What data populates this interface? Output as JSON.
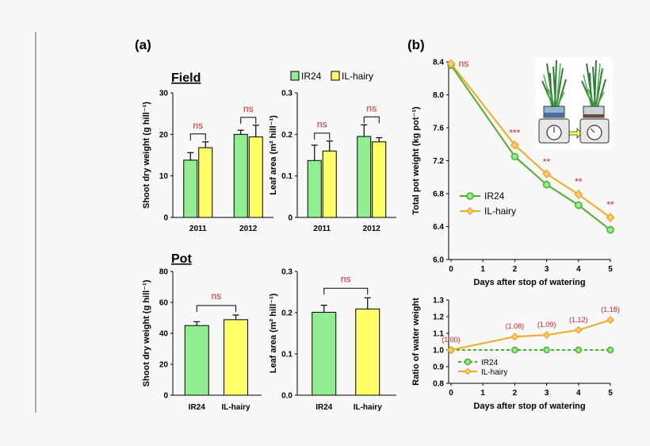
{
  "figure": {
    "panel_a": "(a)",
    "panel_b": "(b)",
    "field_title": "Field",
    "pot_title": "Pot",
    "legend_top": [
      "IR24",
      "IL-hairy"
    ]
  },
  "colors": {
    "ir24": "#90ee90",
    "ilhairy": "#ffff66",
    "ir24_line": "#4caf2a",
    "ilhairy_line": "#f5a623",
    "sig": "#e02020"
  },
  "chart_data": [
    {
      "id": "field_shoot",
      "type": "bar",
      "ylabel": "Shoot dry weight (g hill⁻¹)",
      "ylim": [
        0,
        30
      ],
      "yticks": [
        "0",
        "10",
        "20",
        "30"
      ],
      "groups": [
        "2011",
        "2012"
      ],
      "series": [
        {
          "name": "IR24",
          "values": [
            13.8,
            20.0
          ],
          "errors": [
            1.8,
            1.0
          ]
        },
        {
          "name": "IL-hairy",
          "values": [
            16.8,
            19.4
          ],
          "errors": [
            1.4,
            2.8
          ]
        }
      ],
      "annotations": [
        "ns",
        "ns"
      ]
    },
    {
      "id": "field_leaf",
      "type": "bar",
      "ylabel": "Leaf area (m² hill⁻¹)",
      "ylim": [
        0,
        0.3
      ],
      "yticks": [
        "0",
        "0.1",
        "0.2",
        "0.3"
      ],
      "groups": [
        "2011",
        "2012"
      ],
      "series": [
        {
          "name": "IR24",
          "values": [
            0.137,
            0.195
          ],
          "errors": [
            0.037,
            0.028
          ]
        },
        {
          "name": "IL-hairy",
          "values": [
            0.16,
            0.182
          ],
          "errors": [
            0.024,
            0.01
          ]
        }
      ],
      "annotations": [
        "ns",
        "ns"
      ]
    },
    {
      "id": "pot_shoot",
      "type": "bar",
      "ylabel": "Shoot dry weight (g hill⁻¹)",
      "ylim": [
        0,
        80
      ],
      "yticks": [
        "0",
        "20",
        "40",
        "60",
        "80"
      ],
      "categories": [
        "IR24",
        "IL-hairy"
      ],
      "values": [
        45.0,
        48.8
      ],
      "errors": [
        2.5,
        3.0
      ],
      "annotation": "ns"
    },
    {
      "id": "pot_leaf",
      "type": "bar",
      "ylabel": "Leaf area (m² hill⁻¹)",
      "ylim": [
        0,
        0.3
      ],
      "yticks": [
        "0.0",
        "0.1",
        "0.2",
        "0.3"
      ],
      "categories": [
        "IR24",
        "IL-hairy"
      ],
      "values": [
        0.201,
        0.209
      ],
      "errors": [
        0.017,
        0.027
      ],
      "annotation": "ns"
    },
    {
      "id": "pot_weight",
      "type": "line",
      "xlabel": "Days after stop of watering",
      "ylabel": "Total pot weight (kg pot⁻¹)",
      "x": [
        0,
        2,
        3,
        4,
        5
      ],
      "xticks": [
        "0",
        "1",
        "2",
        "3",
        "4",
        "5"
      ],
      "ylim": [
        6.0,
        8.4
      ],
      "yticks": [
        "6.0",
        "6.4",
        "6.8",
        "7.2",
        "7.6",
        "8.0",
        "8.4"
      ],
      "series": [
        {
          "name": "IR24",
          "values": [
            8.36,
            7.25,
            6.91,
            6.66,
            6.36
          ],
          "errors": [
            0.02,
            0.03,
            0.05,
            0.05,
            0.05
          ]
        },
        {
          "name": "IL-hairy",
          "values": [
            8.38,
            7.39,
            7.04,
            6.79,
            6.51
          ],
          "errors": [
            0.03,
            0.05,
            0.05,
            0.06,
            0.06
          ]
        }
      ],
      "annotations": [
        "ns",
        "***",
        "**",
        "**",
        "**"
      ],
      "legend": "lower-left"
    },
    {
      "id": "water_ratio",
      "type": "line",
      "xlabel": "Days after stop of watering",
      "ylabel": "Ratio of water weight",
      "x": [
        0,
        2,
        3,
        4,
        5
      ],
      "xticks": [
        "0",
        "1",
        "2",
        "3",
        "4",
        "5"
      ],
      "ylim": [
        0.8,
        1.3
      ],
      "yticks": [
        "0.8",
        "0.9",
        "1.0",
        "1.1",
        "1.2",
        "1.3"
      ],
      "series": [
        {
          "name": "IR24",
          "values": [
            1.0,
            1.0,
            1.0,
            1.0,
            1.0
          ],
          "style": "dashed"
        },
        {
          "name": "IL-hairy",
          "values": [
            1.0,
            1.08,
            1.09,
            1.12,
            1.18
          ]
        }
      ],
      "labels": [
        "(1.00)",
        "(1.08)",
        "(1.09)",
        "(1.12)",
        "(1.18)"
      ],
      "legend": "lower-left"
    }
  ]
}
